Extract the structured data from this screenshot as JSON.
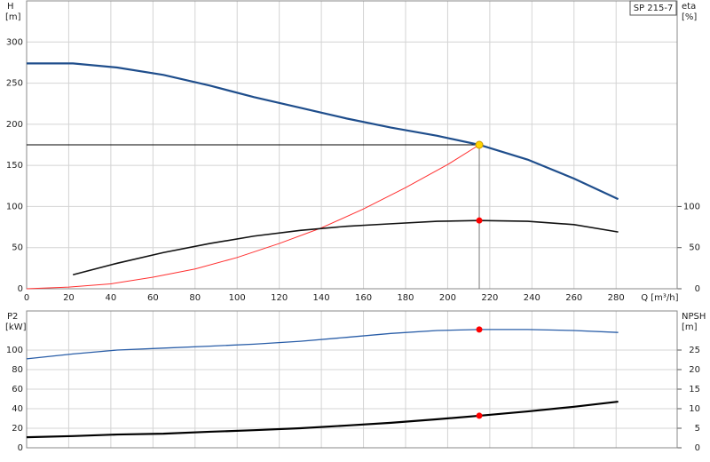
{
  "chart_data": [
    {
      "type": "line",
      "annotation": "SP 215-7",
      "y_title": "H",
      "y_unit": "[m]",
      "y2_title": "eta",
      "y2_unit": "[%]",
      "x_label": "Q [m³/h]",
      "xlim": [
        0,
        309
      ],
      "xticks": [
        0,
        20,
        40,
        60,
        80,
        100,
        120,
        140,
        160,
        180,
        200,
        220,
        240,
        260,
        280
      ],
      "xtick_labels": true,
      "ylim": [
        0,
        350
      ],
      "yticks": [
        0,
        50,
        100,
        150,
        200,
        250,
        300
      ],
      "y2lim": [
        0,
        350
      ],
      "y2ticks": [
        0,
        50,
        100
      ],
      "grid": true,
      "duty_point": {
        "x": 215,
        "y": 175,
        "color": "#ffd400"
      },
      "series": [
        {
          "name": "H",
          "color": "#1f4e8c",
          "width": 2.2,
          "axis": "y",
          "x": [
            0,
            22,
            43,
            65,
            87,
            108,
            130,
            152,
            173,
            195,
            215,
            238,
            260,
            281
          ],
          "values": [
            274,
            274,
            269,
            260,
            247,
            233,
            220,
            207,
            196,
            186,
            175,
            157,
            134,
            109
          ]
        },
        {
          "name": "system",
          "color": "#ff3030",
          "width": 1,
          "axis": "y",
          "x": [
            0,
            20,
            40,
            60,
            80,
            100,
            120,
            140,
            160,
            180,
            200,
            215
          ],
          "values": [
            0,
            2,
            6,
            14,
            24,
            38,
            55,
            74,
            97,
            123,
            151,
            175
          ]
        },
        {
          "name": "eta",
          "color": "#111111",
          "width": 1.6,
          "axis": "y2",
          "x": [
            22,
            43,
            65,
            87,
            108,
            130,
            152,
            173,
            195,
            215,
            238,
            260,
            281
          ],
          "values": [
            17,
            31,
            44,
            55,
            64,
            71,
            76,
            79,
            82,
            83,
            82,
            78,
            69
          ],
          "marker": {
            "x": 215,
            "y": 83,
            "color": "#ff0000"
          }
        }
      ]
    },
    {
      "type": "line",
      "y_title": "P2",
      "y_unit": "[kW]",
      "y2_title": "NPSH",
      "y2_unit": "[m]",
      "xlim": [
        0,
        309
      ],
      "xticks": [
        0,
        20,
        40,
        60,
        80,
        100,
        120,
        140,
        160,
        180,
        200,
        220,
        240,
        260,
        280
      ],
      "xtick_labels": false,
      "ylim": [
        0,
        140
      ],
      "yticks": [
        0,
        20,
        40,
        60,
        80,
        100
      ],
      "y2lim": [
        0,
        35
      ],
      "y2ticks": [
        0,
        5,
        10,
        15,
        20,
        25
      ],
      "grid": true,
      "series": [
        {
          "name": "P2",
          "color": "#2a5ea8",
          "width": 1.3,
          "axis": "y",
          "x": [
            0,
            22,
            43,
            65,
            87,
            108,
            130,
            152,
            173,
            195,
            215,
            238,
            260,
            281
          ],
          "values": [
            91,
            96,
            100,
            102,
            104,
            106,
            109,
            113,
            117,
            120,
            121,
            121,
            120,
            118
          ],
          "marker": {
            "x": 215,
            "y": 121,
            "color": "#ff0000"
          }
        },
        {
          "name": "NPSH",
          "color": "#000000",
          "width": 2.2,
          "axis": "y2",
          "x": [
            0,
            22,
            43,
            65,
            87,
            108,
            130,
            152,
            173,
            195,
            215,
            238,
            260,
            281
          ],
          "values": [
            2.7,
            3,
            3.4,
            3.6,
            4.1,
            4.5,
            5,
            5.7,
            6.4,
            7.3,
            8.2,
            9.3,
            10.5,
            11.8
          ],
          "marker": {
            "x": 215,
            "y": 8.2,
            "color": "#ff0000"
          }
        }
      ]
    }
  ]
}
